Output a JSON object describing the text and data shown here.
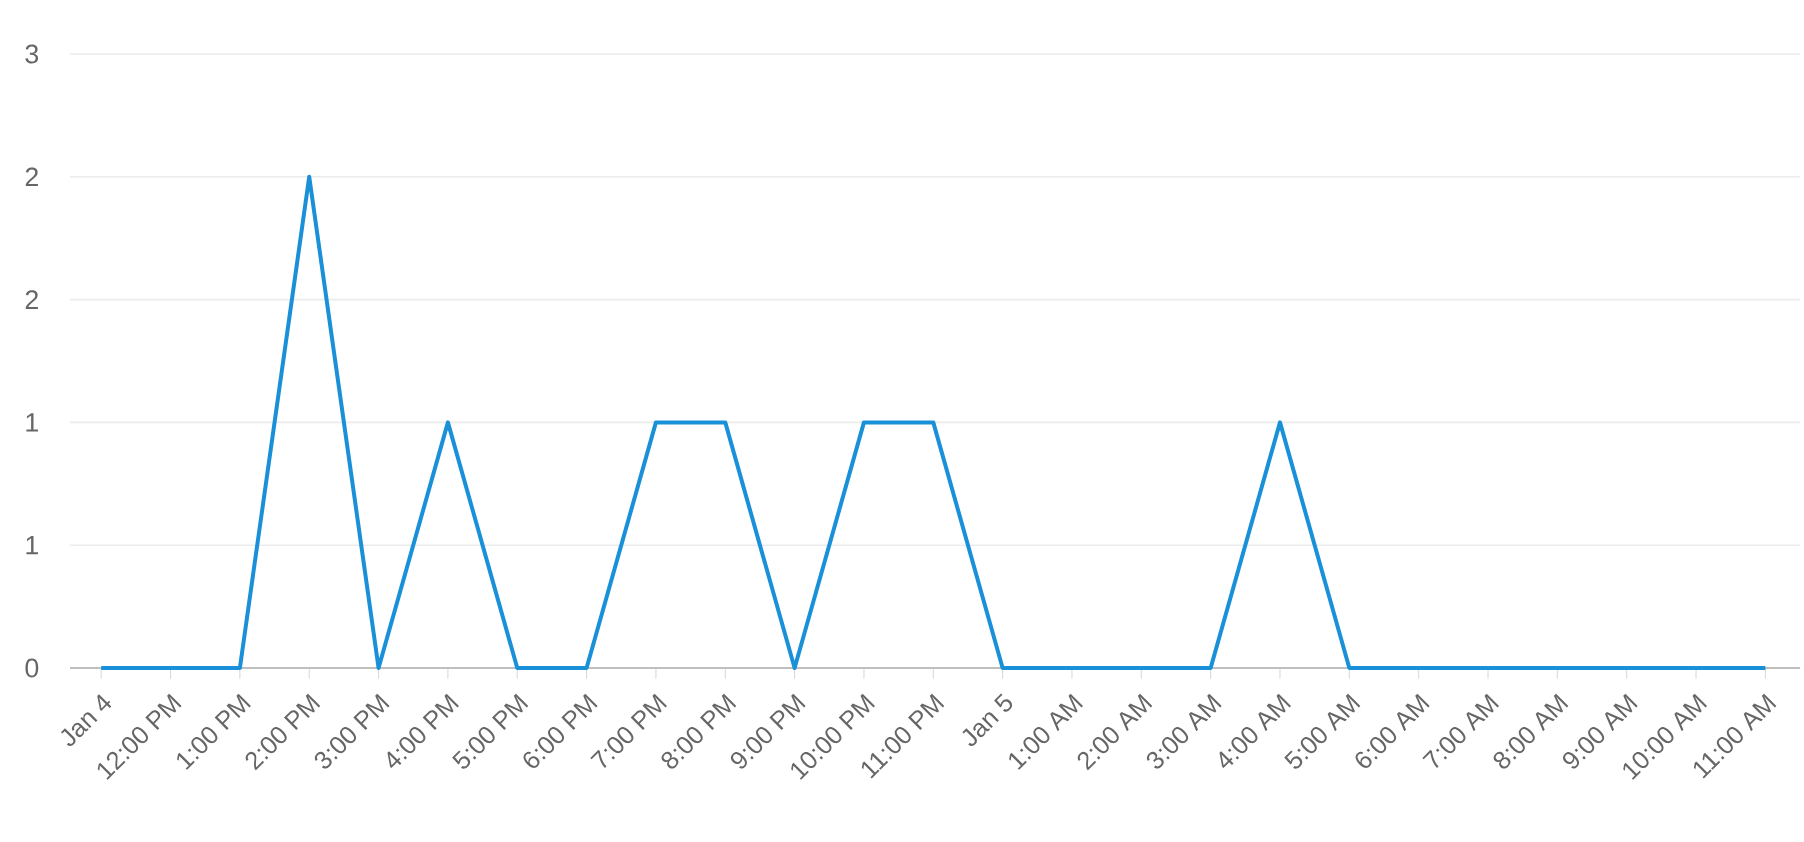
{
  "chart_data": {
    "type": "line",
    "categories": [
      "Jan 4",
      "12:00 PM",
      "1:00 PM",
      "2:00 PM",
      "3:00 PM",
      "4:00 PM",
      "5:00 PM",
      "6:00 PM",
      "7:00 PM",
      "8:00 PM",
      "9:00 PM",
      "10:00 PM",
      "11:00 PM",
      "Jan 5",
      "1:00 AM",
      "2:00 AM",
      "3:00 AM",
      "4:00 AM",
      "5:00 AM",
      "6:00 AM",
      "7:00 AM",
      "8:00 AM",
      "9:00 AM",
      "10:00 AM",
      "11:00 AM"
    ],
    "series": [
      {
        "color": "#1a90d9",
        "values": [
          0,
          0,
          0,
          2.4,
          0,
          1.2,
          0,
          0,
          1.2,
          1.2,
          0,
          1.2,
          1.2,
          0,
          0,
          0,
          0,
          1.2,
          0,
          0,
          0,
          0,
          0,
          0,
          0
        ]
      }
    ],
    "ylim": [
      0,
      3
    ],
    "yticks": [
      0,
      {
        "value": 0.6,
        "label": "1"
      },
      {
        "value": 1.2,
        "label": "1"
      },
      {
        "value": 1.8,
        "label": "2"
      },
      {
        "value": 2.4,
        "label": "2"
      },
      3
    ],
    "grid": "y",
    "marker": "none",
    "line_style": "solid"
  }
}
